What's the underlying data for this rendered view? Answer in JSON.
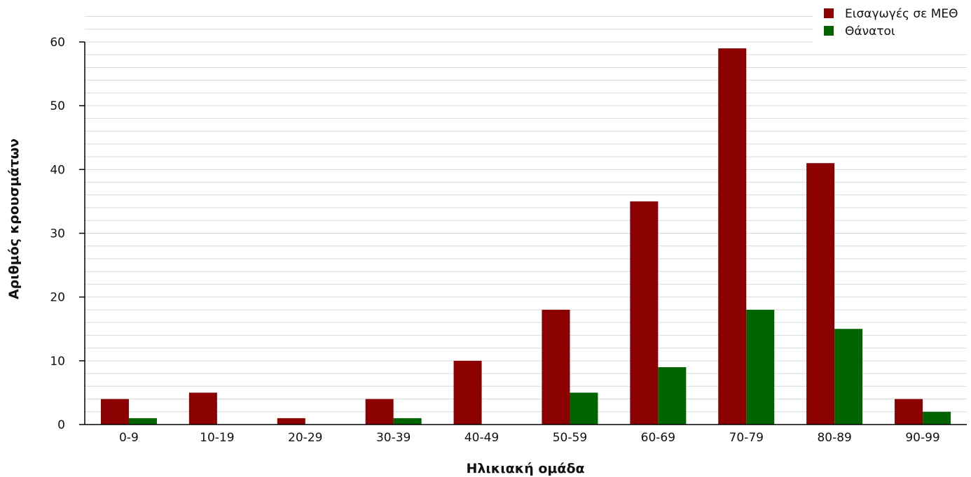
{
  "chart_data": {
    "type": "bar",
    "title": "",
    "xlabel": "Ηλικιακή ομάδα",
    "ylabel": "Αριθμός κρουσμάτων",
    "categories": [
      "0-9",
      "10-19",
      "20-29",
      "30-39",
      "40-49",
      "50-59",
      "60-69",
      "70-79",
      "80-89",
      "90-99"
    ],
    "series": [
      {
        "name": "Εισαγωγές σε ΜΕΘ",
        "color": "#8b0000",
        "values": [
          4,
          5,
          1,
          4,
          10,
          18,
          35,
          59,
          41,
          4
        ]
      },
      {
        "name": "Θάνατοι",
        "color": "#006400",
        "values": [
          1,
          0,
          0,
          1,
          0,
          5,
          9,
          18,
          15,
          2
        ]
      }
    ],
    "ylim": [
      0,
      64
    ],
    "yticks": [
      0,
      10,
      20,
      30,
      40,
      50,
      60
    ],
    "grid": true,
    "legend_position": "top-right"
  }
}
